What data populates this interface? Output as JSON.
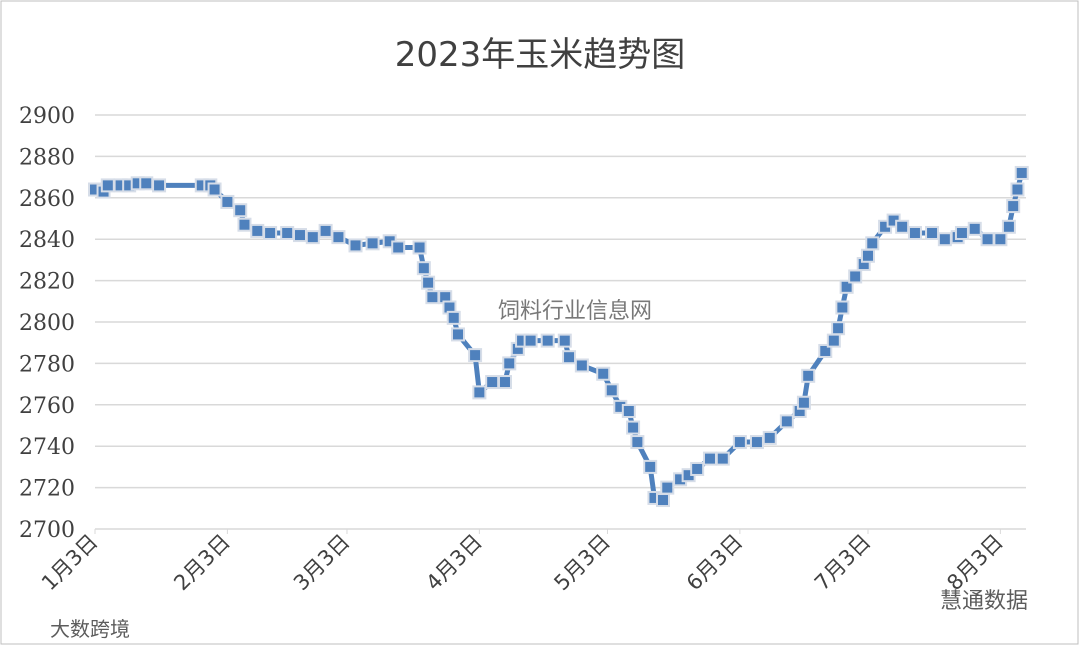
{
  "chart_data": {
    "type": "line",
    "title": "2023年玉米趋势图",
    "x": [
      3,
      5,
      6,
      9,
      11,
      13,
      15,
      18,
      28,
      30,
      31,
      34,
      37,
      38,
      41,
      44,
      48,
      51,
      54,
      57,
      60,
      64,
      68,
      72,
      74,
      79,
      80,
      81,
      82,
      85,
      86,
      87,
      88,
      92,
      93,
      96,
      99,
      100,
      102,
      103,
      105,
      109,
      113,
      114,
      117,
      122,
      124,
      126,
      128,
      129,
      130,
      133,
      134,
      136,
      137,
      140,
      142,
      144,
      147,
      150,
      154,
      158,
      161,
      165,
      168,
      169,
      170,
      174,
      176,
      177,
      178,
      179,
      181,
      183,
      184,
      185,
      188,
      190,
      192,
      195,
      199,
      202,
      205,
      206,
      209,
      212,
      215,
      217,
      218,
      219,
      220
    ],
    "series": [
      {
        "name": "玉米",
        "color": "#4f81bd",
        "values": [
          2864,
          2863,
          2866,
          2866,
          2866,
          2867,
          2867,
          2866,
          2866,
          2866,
          2864,
          2858,
          2854,
          2847,
          2844,
          2843,
          2843,
          2842,
          2841,
          2844,
          2841,
          2837,
          2838,
          2839,
          2836,
          2836,
          2826,
          2819,
          2812,
          2812,
          2807,
          2802,
          2794,
          2784,
          2766,
          2771,
          2771,
          2780,
          2787,
          2791,
          2791,
          2791,
          2791,
          2783,
          2779,
          2775,
          2767,
          2759,
          2757,
          2749,
          2742,
          2730,
          2715,
          2714,
          2720,
          2724,
          2726,
          2729,
          2734,
          2734,
          2742,
          2742,
          2744,
          2752,
          2757,
          2761,
          2774,
          2786,
          2791,
          2797,
          2807,
          2817,
          2822,
          2828,
          2832,
          2838,
          2846,
          2849,
          2846,
          2843,
          2843,
          2840,
          2841,
          2843,
          2845,
          2840,
          2840,
          2846,
          2856,
          2864,
          2872
        ]
      }
    ],
    "xlim": [
      3,
      221
    ],
    "xticks": [
      {
        "value": 3,
        "label": "1月3日"
      },
      {
        "value": 34,
        "label": "2月3日"
      },
      {
        "value": 62,
        "label": "3月3日"
      },
      {
        "value": 93,
        "label": "4月3日"
      },
      {
        "value": 123,
        "label": "5月3日"
      },
      {
        "value": 154,
        "label": "6月3日"
      },
      {
        "value": 184,
        "label": "7月3日"
      },
      {
        "value": 215,
        "label": "8月3日"
      }
    ],
    "ylim": [
      2700,
      2900
    ],
    "yticks": [
      2700,
      2720,
      2740,
      2760,
      2780,
      2800,
      2820,
      2840,
      2860,
      2880,
      2900
    ],
    "grid": true,
    "watermarks": [
      "饲料行业信息网",
      "大数跨境",
      "慧通数据"
    ]
  }
}
